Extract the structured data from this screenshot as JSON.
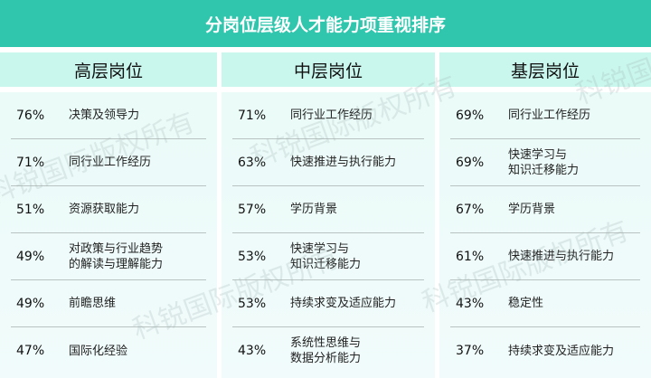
{
  "title": "分岗位层级人才能力项重视排序",
  "watermark": "科锐国际版权所有",
  "colors": {
    "header": "#2fc6ad",
    "column_header": "#c9f7ee",
    "body": "#eefbf9"
  },
  "columns": [
    {
      "header": "高层岗位",
      "rows": [
        {
          "pct": "76%",
          "label": "决策及领导力"
        },
        {
          "pct": "71%",
          "label": "同行业工作经历"
        },
        {
          "pct": "51%",
          "label": "资源获取能力"
        },
        {
          "pct": "49%",
          "label": "对政策与行业趋势\n的解读与理解能力"
        },
        {
          "pct": "49%",
          "label": "前瞻思维"
        },
        {
          "pct": "47%",
          "label": "国际化经验"
        }
      ]
    },
    {
      "header": "中层岗位",
      "rows": [
        {
          "pct": "71%",
          "label": "同行业工作经历"
        },
        {
          "pct": "63%",
          "label": "快速推进与执行能力"
        },
        {
          "pct": "57%",
          "label": "学历背景"
        },
        {
          "pct": "53%",
          "label": "快速学习与\n知识迁移能力"
        },
        {
          "pct": "53%",
          "label": "持续求变及适应能力"
        },
        {
          "pct": "43%",
          "label": "系统性思维与\n数据分析能力"
        }
      ]
    },
    {
      "header": "基层岗位",
      "rows": [
        {
          "pct": "69%",
          "label": "同行业工作经历"
        },
        {
          "pct": "69%",
          "label": "快速学习与\n知识迁移能力"
        },
        {
          "pct": "67%",
          "label": "学历背景"
        },
        {
          "pct": "61%",
          "label": "快速推进与执行能力"
        },
        {
          "pct": "43%",
          "label": "稳定性"
        },
        {
          "pct": "37%",
          "label": "持续求变及适应能力"
        }
      ]
    }
  ]
}
